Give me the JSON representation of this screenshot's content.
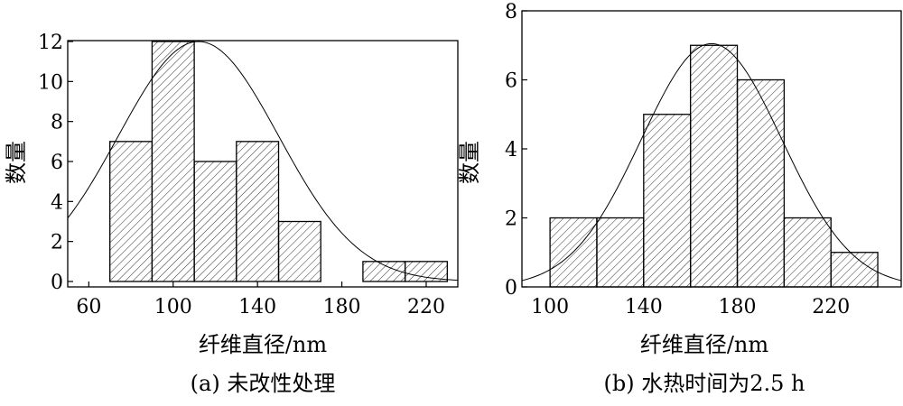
{
  "chart_data": [
    {
      "type": "bar",
      "panel": "a",
      "caption": "(a) 未改性处理",
      "xlabel": "纤维直径/nm",
      "ylabel": "数量",
      "xlim": [
        50,
        235
      ],
      "ylim": [
        0,
        12
      ],
      "xticks": [
        60,
        100,
        140,
        180,
        220
      ],
      "yticks": [
        0,
        2,
        4,
        6,
        8,
        10,
        12
      ],
      "bins": [
        {
          "start": 70,
          "end": 90,
          "count": 7
        },
        {
          "start": 90,
          "end": 110,
          "count": 12
        },
        {
          "start": 110,
          "end": 130,
          "count": 6
        },
        {
          "start": 130,
          "end": 150,
          "count": 7
        },
        {
          "start": 150,
          "end": 170,
          "count": 3
        },
        {
          "start": 170,
          "end": 190,
          "count": 0
        },
        {
          "start": 190,
          "end": 210,
          "count": 1
        },
        {
          "start": 210,
          "end": 230,
          "count": 1
        }
      ],
      "fit": {
        "type": "gaussian",
        "mean": 112,
        "sd": 38,
        "peak": 12
      }
    },
    {
      "type": "bar",
      "panel": "b",
      "caption": "(b) 水热时间为2.5 h",
      "xlabel": "纤维直径/nm",
      "ylabel": "数量",
      "xlim": [
        88,
        250
      ],
      "ylim": [
        0,
        8
      ],
      "xticks": [
        100,
        140,
        180,
        220
      ],
      "yticks": [
        0,
        2,
        4,
        6,
        8
      ],
      "bins": [
        {
          "start": 100,
          "end": 120,
          "count": 2
        },
        {
          "start": 120,
          "end": 140,
          "count": 2
        },
        {
          "start": 140,
          "end": 160,
          "count": 5
        },
        {
          "start": 160,
          "end": 180,
          "count": 7
        },
        {
          "start": 180,
          "end": 200,
          "count": 6
        },
        {
          "start": 200,
          "end": 220,
          "count": 2
        },
        {
          "start": 220,
          "end": 240,
          "count": 1
        }
      ],
      "fit": {
        "type": "gaussian",
        "mean": 169,
        "sd": 30,
        "peak": 7.05
      }
    }
  ]
}
